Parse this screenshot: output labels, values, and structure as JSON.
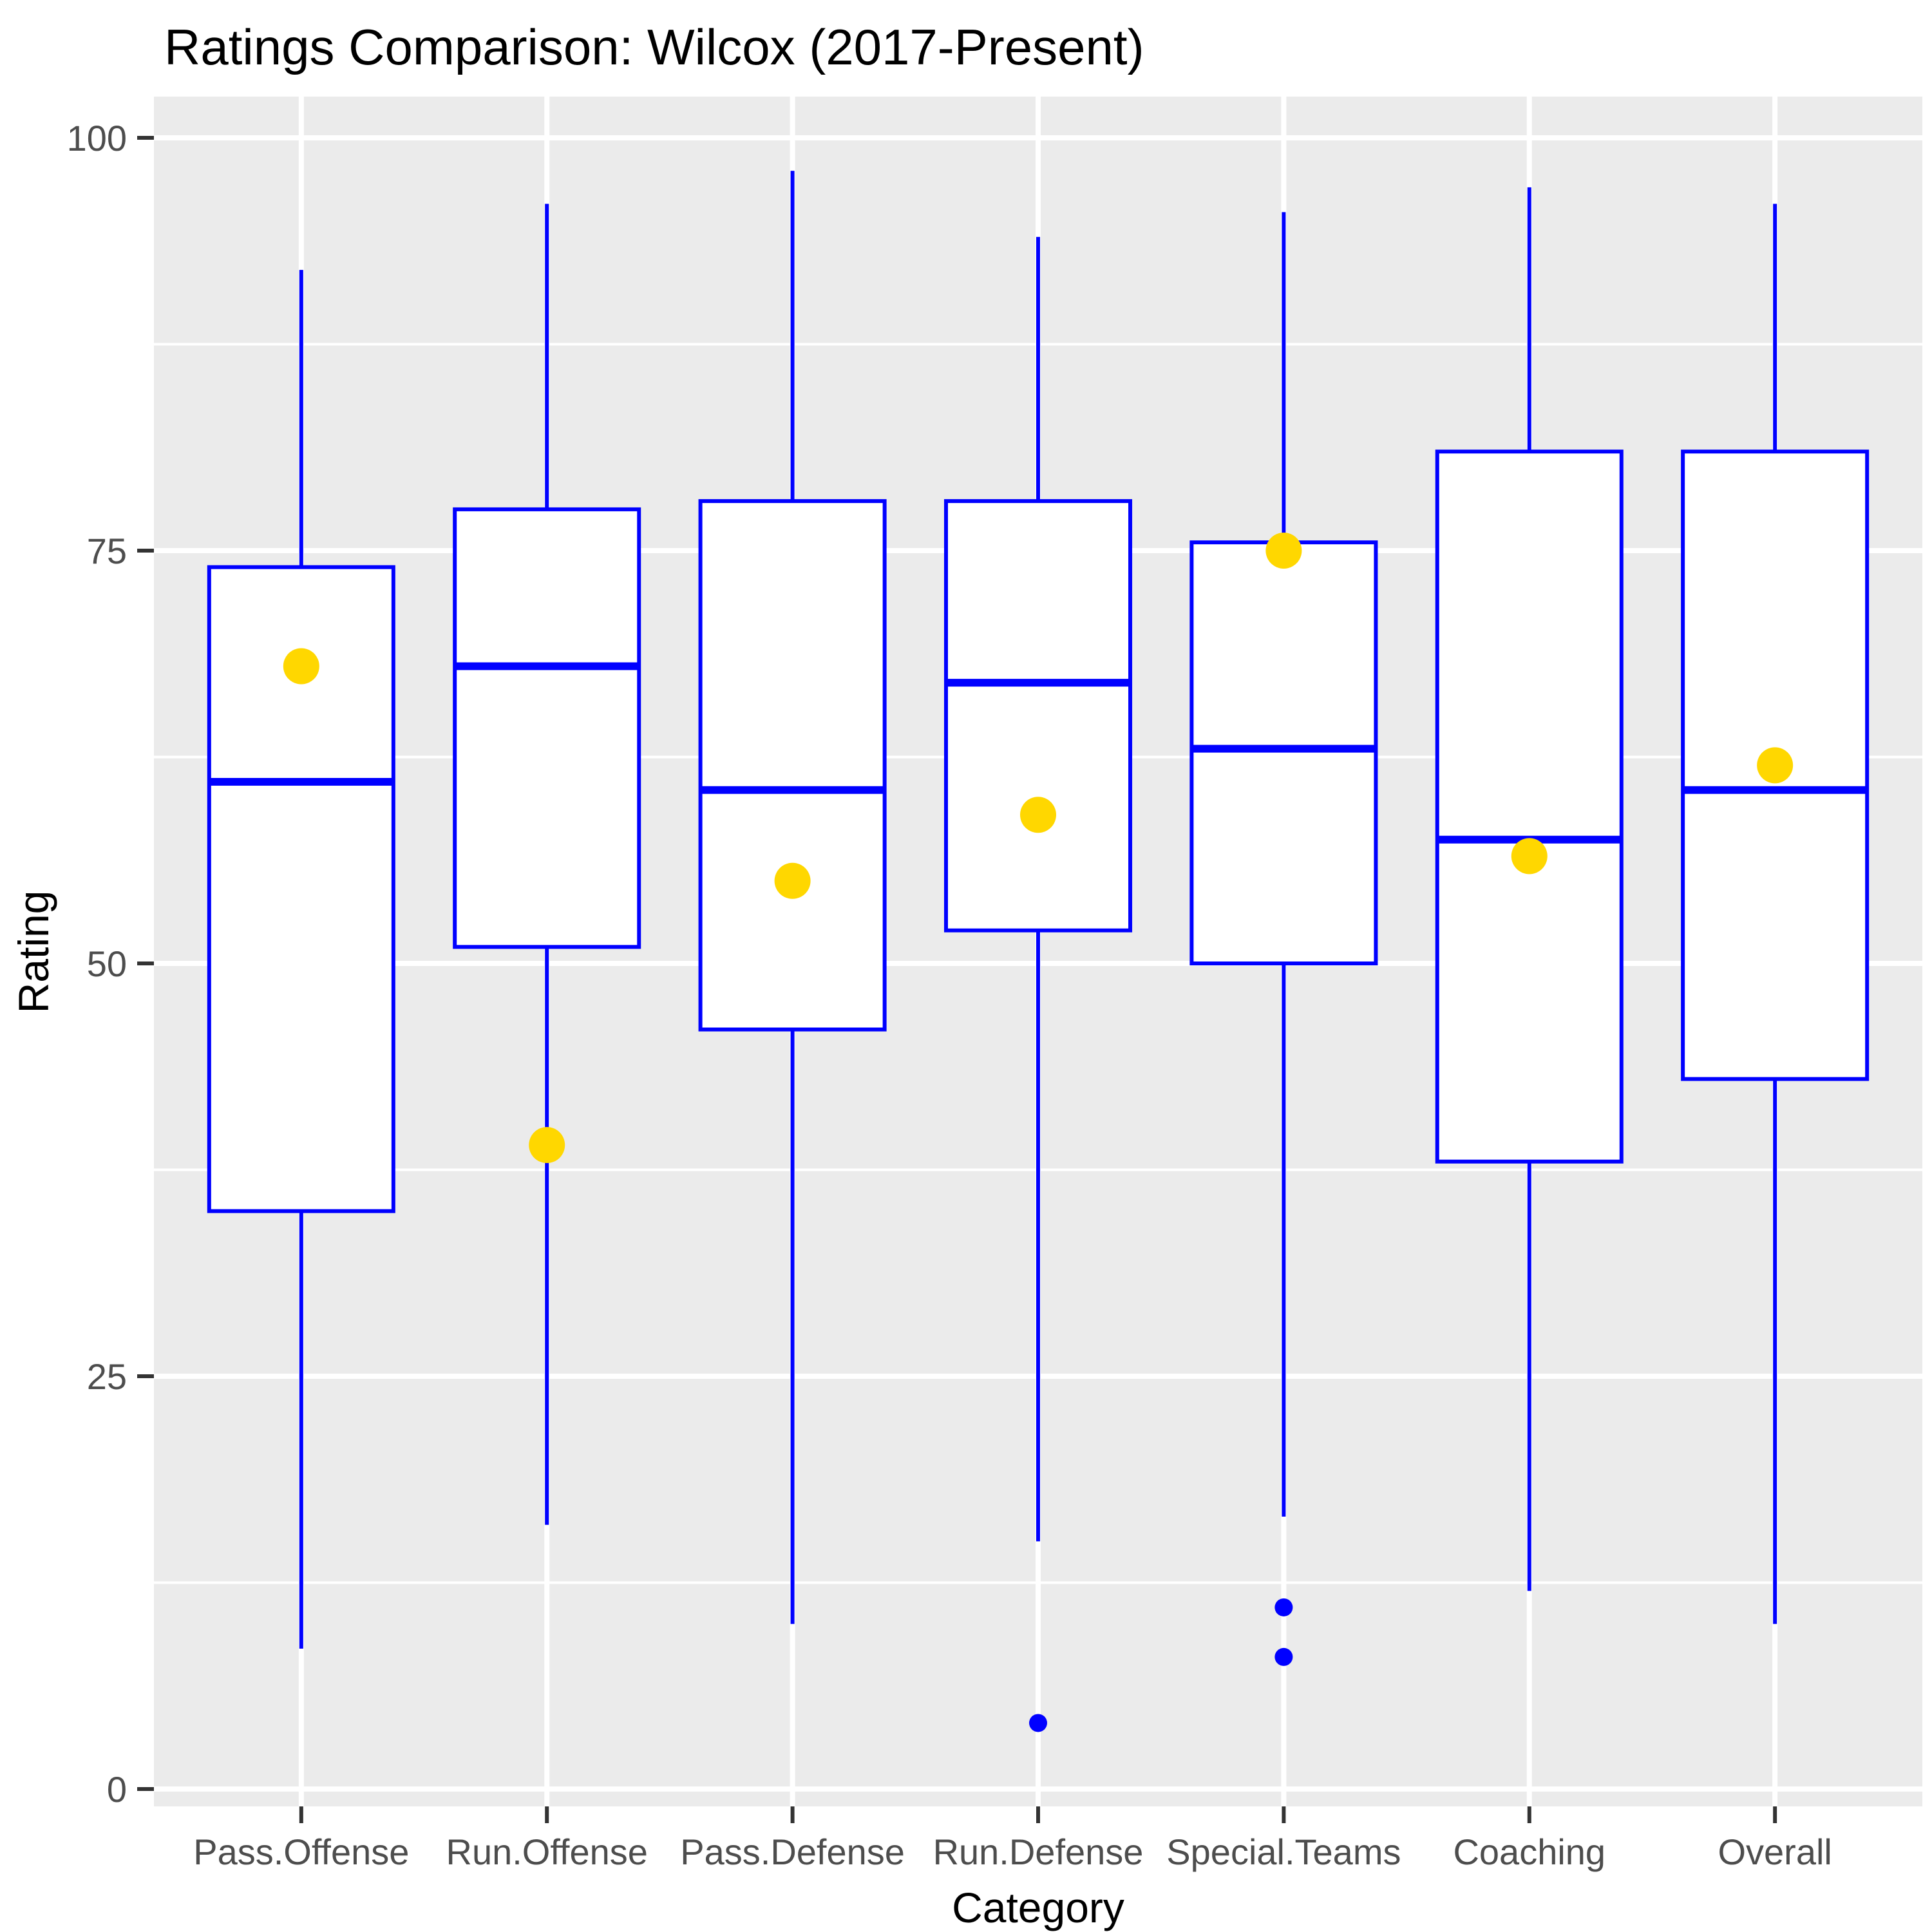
{
  "chart_data": {
    "type": "boxplot",
    "title": "Ratings Comparison: Wilcox (2017-Present)",
    "xlabel": "Category",
    "ylabel": "Rating",
    "ylim": [
      0,
      100
    ],
    "y_ticks": [
      "0",
      "25",
      "50",
      "75",
      "100"
    ],
    "y_tick_values": [
      0,
      25,
      50,
      75,
      100
    ],
    "y_minor_tick_values": [
      12.5,
      37.5,
      62.5,
      87.5
    ],
    "grid": "on",
    "legend_position": "none",
    "categories": [
      "Pass.Offense",
      "Run.Offense",
      "Pass.Defense",
      "Run.Defense",
      "Special.Teams",
      "Coaching",
      "Overall"
    ],
    "series": [
      {
        "label": "Pass.Offense",
        "whisker_low": 8.5,
        "q1": 35,
        "median": 61,
        "q3": 74,
        "whisker_high": 92,
        "mean_point": 68,
        "outliers": []
      },
      {
        "label": "Run.Offense",
        "whisker_low": 16,
        "q1": 51,
        "median": 68,
        "q3": 77.5,
        "whisker_high": 96,
        "mean_point": 39,
        "outliers": []
      },
      {
        "label": "Pass.Defense",
        "whisker_low": 10,
        "q1": 46,
        "median": 60.5,
        "q3": 78,
        "whisker_high": 98,
        "mean_point": 55,
        "outliers": []
      },
      {
        "label": "Run.Defense",
        "whisker_low": 15,
        "q1": 52,
        "median": 67,
        "q3": 78,
        "whisker_high": 94,
        "mean_point": 59,
        "outliers": [
          4
        ]
      },
      {
        "label": "Special.Teams",
        "whisker_low": 16.5,
        "q1": 50,
        "median": 63,
        "q3": 75.5,
        "whisker_high": 95.5,
        "mean_point": 75,
        "outliers": [
          11,
          8
        ]
      },
      {
        "label": "Coaching",
        "whisker_low": 12,
        "q1": 38,
        "median": 57.5,
        "q3": 81,
        "whisker_high": 97,
        "mean_point": 56.5,
        "outliers": []
      },
      {
        "label": "Overall",
        "whisker_low": 10,
        "q1": 43,
        "median": 60.5,
        "q3": 81,
        "whisker_high": 96,
        "mean_point": 62,
        "outliers": []
      }
    ],
    "colors": {
      "box_stroke": "#0000FF",
      "box_fill": "#FFFFFF",
      "median": "#0000FF",
      "whisker": "#0000FF",
      "mean_dot": "#FFD700",
      "outlier_dot": "#0000FF",
      "panel_background": "#EBEBEB",
      "gridline": "#FFFFFF",
      "tick_mark": "#333333",
      "tick_label": "#4D4D4D",
      "title_color": "#000000"
    }
  }
}
